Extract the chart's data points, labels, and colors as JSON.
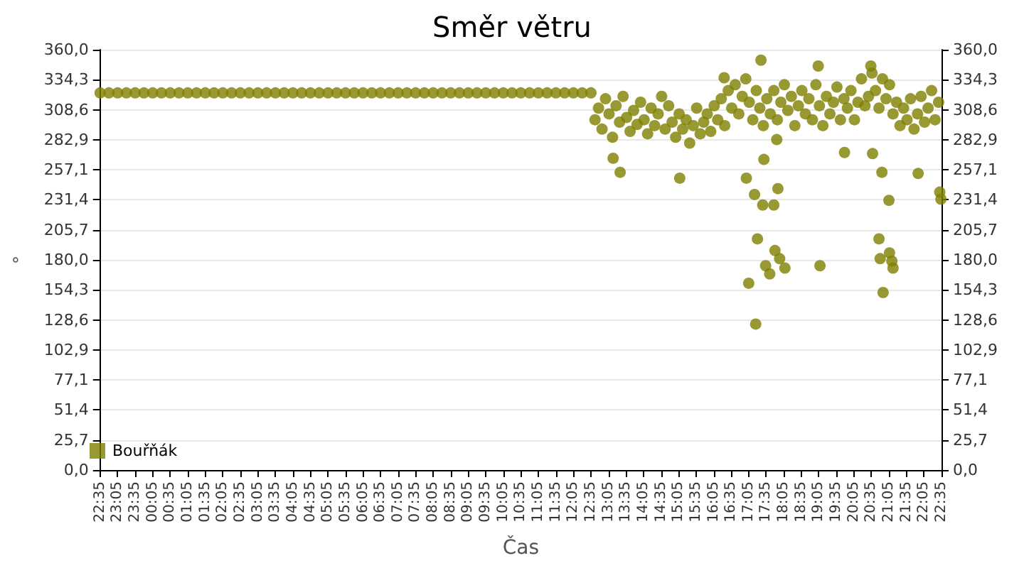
{
  "chart_data": {
    "type": "scatter",
    "title": "Směr větru",
    "xlabel": "Čas",
    "ylabel": "°",
    "legend": "bottom left",
    "grid": "y",
    "marker": "circle",
    "xlim": [
      "--01-01T22:35",
      "--01-02T22:35"
    ],
    "xticks": [
      {
        "value": "--01-01T22:35",
        "label": "22:35"
      },
      {
        "value": "--01-01T23:05",
        "label": "23:05"
      },
      {
        "value": "--01-01T23:35",
        "label": "23:35"
      },
      {
        "value": "--01-02T00:05",
        "label": "00:05"
      },
      {
        "value": "--01-02T00:35",
        "label": "00:35"
      },
      {
        "value": "--01-02T01:05",
        "label": "01:05"
      },
      {
        "value": "--01-02T01:35",
        "label": "01:35"
      },
      {
        "value": "--01-02T02:05",
        "label": "02:05"
      },
      {
        "value": "--01-02T02:35",
        "label": "02:35"
      },
      {
        "value": "--01-02T03:05",
        "label": "03:05"
      },
      {
        "value": "--01-02T03:35",
        "label": "03:35"
      },
      {
        "value": "--01-02T04:05",
        "label": "04:05"
      },
      {
        "value": "--01-02T04:35",
        "label": "04:35"
      },
      {
        "value": "--01-02T05:05",
        "label": "05:05"
      },
      {
        "value": "--01-02T05:35",
        "label": "05:35"
      },
      {
        "value": "--01-02T06:05",
        "label": "06:05"
      },
      {
        "value": "--01-02T06:35",
        "label": "06:35"
      },
      {
        "value": "--01-02T07:05",
        "label": "07:05"
      },
      {
        "value": "--01-02T07:35",
        "label": "07:35"
      },
      {
        "value": "--01-02T08:05",
        "label": "08:05"
      },
      {
        "value": "--01-02T08:35",
        "label": "08:35"
      },
      {
        "value": "--01-02T09:05",
        "label": "09:05"
      },
      {
        "value": "--01-02T09:35",
        "label": "09:35"
      },
      {
        "value": "--01-02T10:05",
        "label": "10:05"
      },
      {
        "value": "--01-02T10:35",
        "label": "10:35"
      },
      {
        "value": "--01-02T11:05",
        "label": "11:05"
      },
      {
        "value": "--01-02T11:35",
        "label": "11:35"
      },
      {
        "value": "--01-02T12:05",
        "label": "12:05"
      },
      {
        "value": "--01-02T12:35",
        "label": "12:35"
      },
      {
        "value": "--01-02T13:05",
        "label": "13:05"
      },
      {
        "value": "--01-02T13:35",
        "label": "13:35"
      },
      {
        "value": "--01-02T14:05",
        "label": "14:05"
      },
      {
        "value": "--01-02T14:35",
        "label": "14:35"
      },
      {
        "value": "--01-02T15:05",
        "label": "15:05"
      },
      {
        "value": "--01-02T15:35",
        "label": "15:35"
      },
      {
        "value": "--01-02T16:05",
        "label": "16:05"
      },
      {
        "value": "--01-02T16:35",
        "label": "16:35"
      },
      {
        "value": "--01-02T17:05",
        "label": "17:05"
      },
      {
        "value": "--01-02T17:35",
        "label": "17:35"
      },
      {
        "value": "--01-02T18:05",
        "label": "18:05"
      },
      {
        "value": "--01-02T18:35",
        "label": "18:35"
      },
      {
        "value": "--01-02T19:05",
        "label": "19:05"
      },
      {
        "value": "--01-02T19:35",
        "label": "19:35"
      },
      {
        "value": "--01-02T20:05",
        "label": "20:05"
      },
      {
        "value": "--01-02T20:35",
        "label": "20:35"
      },
      {
        "value": "--01-02T21:05",
        "label": "21:05"
      },
      {
        "value": "--01-02T21:35",
        "label": "21:35"
      },
      {
        "value": "--01-02T22:05",
        "label": "22:05"
      },
      {
        "value": "--01-02T22:35",
        "label": "22:35"
      }
    ],
    "ylim": [
      0,
      360
    ],
    "yticks": [
      {
        "value": 0,
        "label": "0,0"
      },
      {
        "value": 25.7,
        "label": "25,7"
      },
      {
        "value": 51.4,
        "label": "51,4"
      },
      {
        "value": 77.1,
        "label": "77,1"
      },
      {
        "value": 102.9,
        "label": "102,9"
      },
      {
        "value": 128.6,
        "label": "128,6"
      },
      {
        "value": 154.3,
        "label": "154,3"
      },
      {
        "value": 180,
        "label": "180,0"
      },
      {
        "value": 205.7,
        "label": "205,7"
      },
      {
        "value": 231.4,
        "label": "231,4"
      },
      {
        "value": 257.1,
        "label": "257,1"
      },
      {
        "value": 282.9,
        "label": "282,9"
      },
      {
        "value": 308.6,
        "label": "308,6"
      },
      {
        "value": 334.3,
        "label": "334,3"
      },
      {
        "value": 360,
        "label": "360,0"
      }
    ],
    "y2lim": [
      0,
      360
    ],
    "y2ticks": [
      {
        "value": 0,
        "label": "0,0"
      },
      {
        "value": 25.7,
        "label": "25,7"
      },
      {
        "value": 51.4,
        "label": "51,4"
      },
      {
        "value": 77.1,
        "label": "77,1"
      },
      {
        "value": 102.9,
        "label": "102,9"
      },
      {
        "value": 128.6,
        "label": "128,6"
      },
      {
        "value": 154.3,
        "label": "154,3"
      },
      {
        "value": 180,
        "label": "180,0"
      },
      {
        "value": 205.7,
        "label": "205,7"
      },
      {
        "value": 231.4,
        "label": "231,4"
      },
      {
        "value": 257.1,
        "label": "257,1"
      },
      {
        "value": 282.9,
        "label": "282,9"
      },
      {
        "value": 308.6,
        "label": "308,6"
      },
      {
        "value": 334.3,
        "label": "334,3"
      },
      {
        "value": 360,
        "label": "360,0"
      }
    ],
    "series": [
      {
        "name": "Bouřňák",
        "color": "#808000",
        "x": [
          "--01-01T22:35",
          "--01-01T22:50",
          "--01-01T23:05",
          "--01-01T23:20",
          "--01-01T23:35",
          "--01-01T23:50",
          "--01-02T00:05",
          "--01-02T00:20",
          "--01-02T00:35",
          "--01-02T00:50",
          "--01-02T01:05",
          "--01-02T01:20",
          "--01-02T01:35",
          "--01-02T01:50",
          "--01-02T02:05",
          "--01-02T02:20",
          "--01-02T02:35",
          "--01-02T02:50",
          "--01-02T03:05",
          "--01-02T03:20",
          "--01-02T03:35",
          "--01-02T03:50",
          "--01-02T04:05",
          "--01-02T04:20",
          "--01-02T04:35",
          "--01-02T04:50",
          "--01-02T05:05",
          "--01-02T05:20",
          "--01-02T05:35",
          "--01-02T05:50",
          "--01-02T06:05",
          "--01-02T06:20",
          "--01-02T06:35",
          "--01-02T06:50",
          "--01-02T07:05",
          "--01-02T07:20",
          "--01-02T07:35",
          "--01-02T07:50",
          "--01-02T08:05",
          "--01-02T08:20",
          "--01-02T08:35",
          "--01-02T08:50",
          "--01-02T09:05",
          "--01-02T09:20",
          "--01-02T09:35",
          "--01-02T09:50",
          "--01-02T10:05",
          "--01-02T10:20",
          "--01-02T10:35",
          "--01-02T10:50",
          "--01-02T11:05",
          "--01-02T11:20",
          "--01-02T11:35",
          "--01-02T11:50",
          "--01-02T12:05",
          "--01-02T12:20",
          "--01-02T12:35",
          "--01-02T12:42",
          "--01-02T12:48",
          "--01-02T12:54",
          "--01-02T13:00",
          "--01-02T13:06",
          "--01-02T13:12",
          "--01-02T13:18",
          "--01-02T13:24",
          "--01-02T13:30",
          "--01-02T13:36",
          "--01-02T13:42",
          "--01-02T13:48",
          "--01-02T13:54",
          "--01-02T14:00",
          "--01-02T14:06",
          "--01-02T14:12",
          "--01-02T14:18",
          "--01-02T14:24",
          "--01-02T14:30",
          "--01-02T14:36",
          "--01-02T14:42",
          "--01-02T14:48",
          "--01-02T14:54",
          "--01-02T15:00",
          "--01-02T15:06",
          "--01-02T15:12",
          "--01-02T15:18",
          "--01-02T15:24",
          "--01-02T15:30",
          "--01-02T15:36",
          "--01-02T15:42",
          "--01-02T15:48",
          "--01-02T15:54",
          "--01-02T16:00",
          "--01-02T16:06",
          "--01-02T16:12",
          "--01-02T16:18",
          "--01-02T16:24",
          "--01-02T16:30",
          "--01-02T16:36",
          "--01-02T16:42",
          "--01-02T16:48",
          "--01-02T16:54",
          "--01-02T17:00",
          "--01-02T17:06",
          "--01-02T17:12",
          "--01-02T17:18",
          "--01-02T17:24",
          "--01-02T17:30",
          "--01-02T17:36",
          "--01-02T17:42",
          "--01-02T17:48",
          "--01-02T17:54",
          "--01-02T18:00",
          "--01-02T18:06",
          "--01-02T18:12",
          "--01-02T18:18",
          "--01-02T18:24",
          "--01-02T18:30",
          "--01-02T18:36",
          "--01-02T18:42",
          "--01-02T18:48",
          "--01-02T18:54",
          "--01-02T19:00",
          "--01-02T19:06",
          "--01-02T19:12",
          "--01-02T19:18",
          "--01-02T19:24",
          "--01-02T19:30",
          "--01-02T19:36",
          "--01-02T19:42",
          "--01-02T19:48",
          "--01-02T19:54",
          "--01-02T20:00",
          "--01-02T20:06",
          "--01-02T20:12",
          "--01-02T20:18",
          "--01-02T20:24",
          "--01-02T20:30",
          "--01-02T20:36",
          "--01-02T20:42",
          "--01-02T20:48",
          "--01-02T20:54",
          "--01-02T21:00",
          "--01-02T21:06",
          "--01-02T21:12",
          "--01-02T21:18",
          "--01-02T21:24",
          "--01-02T21:30",
          "--01-02T21:36",
          "--01-02T21:42",
          "--01-02T21:48",
          "--01-02T21:54",
          "--01-02T22:00",
          "--01-02T22:06",
          "--01-02T22:12",
          "--01-02T22:18",
          "--01-02T22:24",
          "--01-02T22:30",
          "--01-02T13:13",
          "--01-02T13:25",
          "--01-02T15:07",
          "--01-02T16:23",
          "--01-02T17:26",
          "--01-02T17:01",
          "--01-02T17:15",
          "--01-02T17:29",
          "--01-02T17:48",
          "--01-02T17:55",
          "--01-02T17:31",
          "--01-02T17:53",
          "--01-02T19:49",
          "--01-02T20:37",
          "--01-02T20:53",
          "--01-02T21:05",
          "--01-02T21:55",
          "--01-02T22:32",
          "--01-02T22:34",
          "--01-02T19:04",
          "--01-02T20:34",
          "--01-02T17:20",
          "--01-02T17:50",
          "--01-02T17:58",
          "--01-02T17:34",
          "--01-02T17:41",
          "--01-02T18:07",
          "--01-02T17:05",
          "--01-02T17:17",
          "--01-02T19:07",
          "--01-02T20:48",
          "--01-02T20:50",
          "--01-02T21:06",
          "--01-02T21:10",
          "--01-02T21:12",
          "--01-02T20:55"
        ],
        "values": [
          323,
          323,
          323,
          323,
          323,
          323,
          323,
          323,
          323,
          323,
          323,
          323,
          323,
          323,
          323,
          323,
          323,
          323,
          323,
          323,
          323,
          323,
          323,
          323,
          323,
          323,
          323,
          323,
          323,
          323,
          323,
          323,
          323,
          323,
          323,
          323,
          323,
          323,
          323,
          323,
          323,
          323,
          323,
          323,
          323,
          323,
          323,
          323,
          323,
          323,
          323,
          323,
          323,
          323,
          323,
          323,
          323,
          300,
          310,
          292,
          318,
          305,
          285,
          312,
          298,
          320,
          302,
          290,
          308,
          296,
          315,
          300,
          288,
          310,
          295,
          305,
          320,
          292,
          312,
          298,
          285,
          305,
          292,
          300,
          280,
          295,
          310,
          288,
          298,
          305,
          290,
          312,
          300,
          318,
          295,
          325,
          310,
          330,
          305,
          320,
          335,
          315,
          300,
          325,
          310,
          295,
          318,
          305,
          325,
          300,
          315,
          330,
          308,
          320,
          295,
          312,
          325,
          305,
          318,
          300,
          330,
          312,
          295,
          320,
          305,
          315,
          328,
          300,
          318,
          310,
          325,
          300,
          315,
          335,
          312,
          320,
          340,
          325,
          310,
          335,
          318,
          330,
          305,
          315,
          295,
          310,
          300,
          318,
          292,
          305,
          320,
          298,
          310,
          325,
          300,
          315,
          267,
          255,
          250,
          336,
          351,
          250,
          236,
          227,
          227,
          241,
          266,
          283,
          272,
          271,
          255,
          231,
          254,
          238,
          232,
          346,
          346,
          198,
          188,
          181,
          175,
          168,
          173,
          160,
          125,
          175,
          198,
          181,
          186,
          179,
          173,
          152
        ]
      }
    ]
  }
}
